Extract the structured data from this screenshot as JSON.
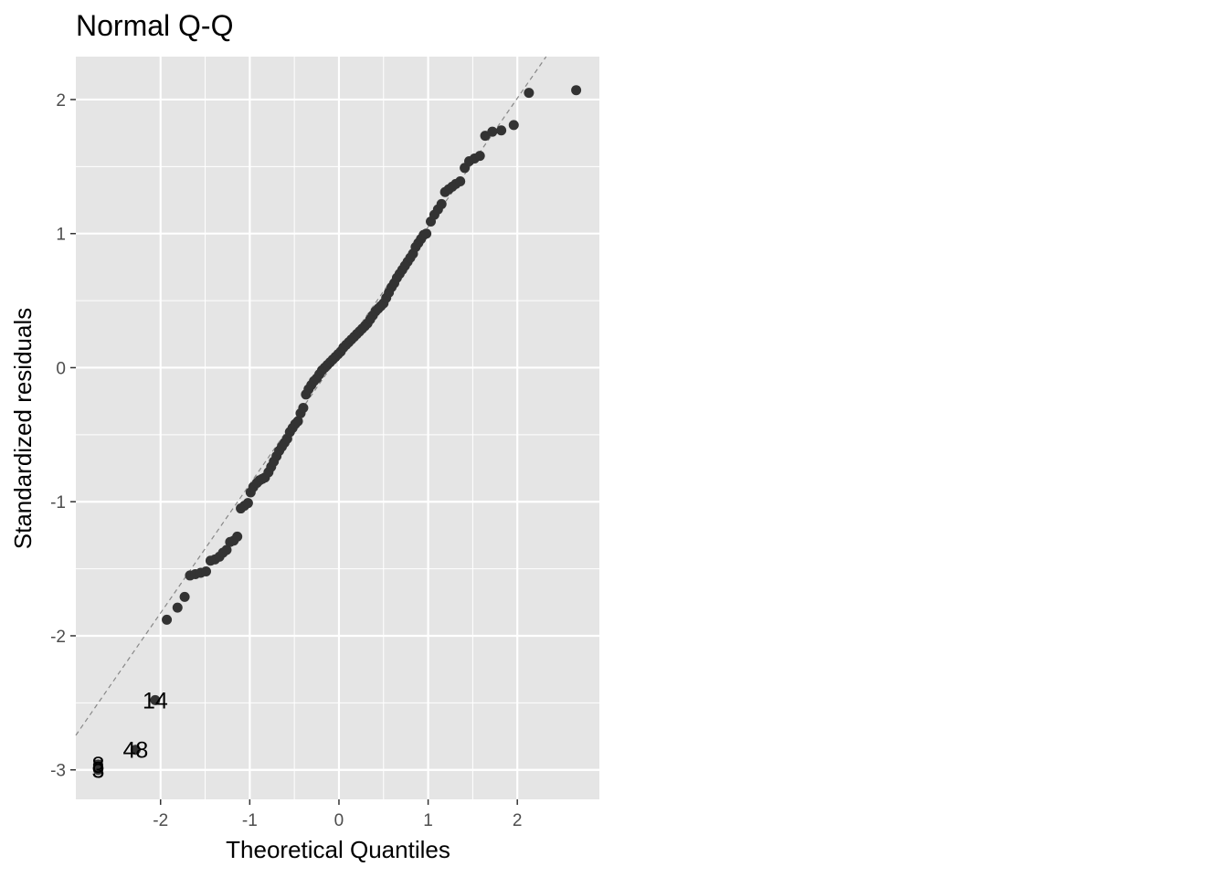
{
  "chart_data": {
    "type": "scatter",
    "title": "Normal Q-Q",
    "xlabel": "Theoretical Quantiles",
    "ylabel": "Standardized residuals",
    "xlim": [
      -2.95,
      2.92
    ],
    "ylim": [
      -3.22,
      2.32
    ],
    "x_ticks": [
      -2,
      -1,
      0,
      1,
      2
    ],
    "y_ticks": [
      -3,
      -2,
      -1,
      0,
      1,
      2
    ],
    "x_tick_labels": [
      "-2",
      "-1",
      "0",
      "1",
      "2"
    ],
    "y_tick_labels": [
      "-3",
      "-2",
      "-1",
      "0",
      "1",
      "2"
    ],
    "reference_line": {
      "intercept": 0.09,
      "slope": 0.96
    },
    "grid": true,
    "colors": {
      "panel": "#e5e5e5",
      "grid": "#ffffff",
      "points": "#333333",
      "refline": "#888888"
    },
    "points": [
      [
        -2.7,
        -3.0
      ],
      [
        -2.7,
        -2.96
      ],
      [
        -2.28,
        -2.85
      ],
      [
        -2.06,
        -2.48
      ],
      [
        -1.93,
        -1.88
      ],
      [
        -1.81,
        -1.79
      ],
      [
        -1.73,
        -1.71
      ],
      [
        -1.67,
        -1.55
      ],
      [
        -1.61,
        -1.54
      ],
      [
        -1.55,
        -1.53
      ],
      [
        -1.49,
        -1.52
      ],
      [
        -1.44,
        -1.44
      ],
      [
        -1.39,
        -1.43
      ],
      [
        -1.34,
        -1.41
      ],
      [
        -1.3,
        -1.38
      ],
      [
        -1.26,
        -1.36
      ],
      [
        -1.22,
        -1.3
      ],
      [
        -1.18,
        -1.29
      ],
      [
        -1.14,
        -1.26
      ],
      [
        -1.1,
        -1.05
      ],
      [
        -1.06,
        -1.03
      ],
      [
        -1.02,
        -1.01
      ],
      [
        -0.99,
        -0.93
      ],
      [
        -0.96,
        -0.89
      ],
      [
        -0.92,
        -0.86
      ],
      [
        -0.89,
        -0.84
      ],
      [
        -0.86,
        -0.83
      ],
      [
        -0.83,
        -0.82
      ],
      [
        -0.79,
        -0.78
      ],
      [
        -0.76,
        -0.74
      ],
      [
        -0.73,
        -0.7
      ],
      [
        -0.7,
        -0.66
      ],
      [
        -0.67,
        -0.62
      ],
      [
        -0.64,
        -0.59
      ],
      [
        -0.61,
        -0.56
      ],
      [
        -0.58,
        -0.53
      ],
      [
        -0.55,
        -0.48
      ],
      [
        -0.52,
        -0.45
      ],
      [
        -0.49,
        -0.42
      ],
      [
        -0.46,
        -0.4
      ],
      [
        -0.43,
        -0.34
      ],
      [
        -0.4,
        -0.3
      ],
      [
        -0.37,
        -0.2
      ],
      [
        -0.34,
        -0.16
      ],
      [
        -0.31,
        -0.13
      ],
      [
        -0.28,
        -0.1
      ],
      [
        -0.25,
        -0.08
      ],
      [
        -0.22,
        -0.05
      ],
      [
        -0.19,
        -0.02
      ],
      [
        -0.16,
        0.0
      ],
      [
        -0.13,
        0.02
      ],
      [
        -0.1,
        0.04
      ],
      [
        -0.07,
        0.06
      ],
      [
        -0.04,
        0.08
      ],
      [
        -0.01,
        0.1
      ],
      [
        0.02,
        0.12
      ],
      [
        0.05,
        0.15
      ],
      [
        0.08,
        0.17
      ],
      [
        0.11,
        0.19
      ],
      [
        0.14,
        0.21
      ],
      [
        0.17,
        0.23
      ],
      [
        0.2,
        0.25
      ],
      [
        0.23,
        0.27
      ],
      [
        0.26,
        0.29
      ],
      [
        0.29,
        0.31
      ],
      [
        0.32,
        0.33
      ],
      [
        0.35,
        0.36
      ],
      [
        0.38,
        0.39
      ],
      [
        0.41,
        0.42
      ],
      [
        0.44,
        0.44
      ],
      [
        0.47,
        0.46
      ],
      [
        0.5,
        0.48
      ],
      [
        0.53,
        0.52
      ],
      [
        0.56,
        0.56
      ],
      [
        0.59,
        0.6
      ],
      [
        0.62,
        0.63
      ],
      [
        0.65,
        0.67
      ],
      [
        0.68,
        0.7
      ],
      [
        0.71,
        0.73
      ],
      [
        0.74,
        0.76
      ],
      [
        0.77,
        0.79
      ],
      [
        0.8,
        0.82
      ],
      [
        0.83,
        0.85
      ],
      [
        0.86,
        0.9
      ],
      [
        0.89,
        0.93
      ],
      [
        0.92,
        0.96
      ],
      [
        0.95,
        0.99
      ],
      [
        0.98,
        1.0
      ],
      [
        1.03,
        1.09
      ],
      [
        1.07,
        1.14
      ],
      [
        1.11,
        1.18
      ],
      [
        1.15,
        1.22
      ],
      [
        1.19,
        1.31
      ],
      [
        1.23,
        1.33
      ],
      [
        1.27,
        1.35
      ],
      [
        1.31,
        1.37
      ],
      [
        1.36,
        1.39
      ],
      [
        1.41,
        1.49
      ],
      [
        1.46,
        1.54
      ],
      [
        1.52,
        1.56
      ],
      [
        1.58,
        1.58
      ],
      [
        1.64,
        1.73
      ],
      [
        1.72,
        1.76
      ],
      [
        1.82,
        1.77
      ],
      [
        1.96,
        1.81
      ],
      [
        2.13,
        2.05
      ],
      [
        2.66,
        2.07
      ]
    ],
    "labels": [
      {
        "text": "8",
        "x": -2.7,
        "y": -2.96
      },
      {
        "text": "3",
        "x": -2.7,
        "y": -3.0
      },
      {
        "text": "48",
        "x": -2.28,
        "y": -2.85
      },
      {
        "text": "14",
        "x": -2.06,
        "y": -2.48
      }
    ]
  }
}
